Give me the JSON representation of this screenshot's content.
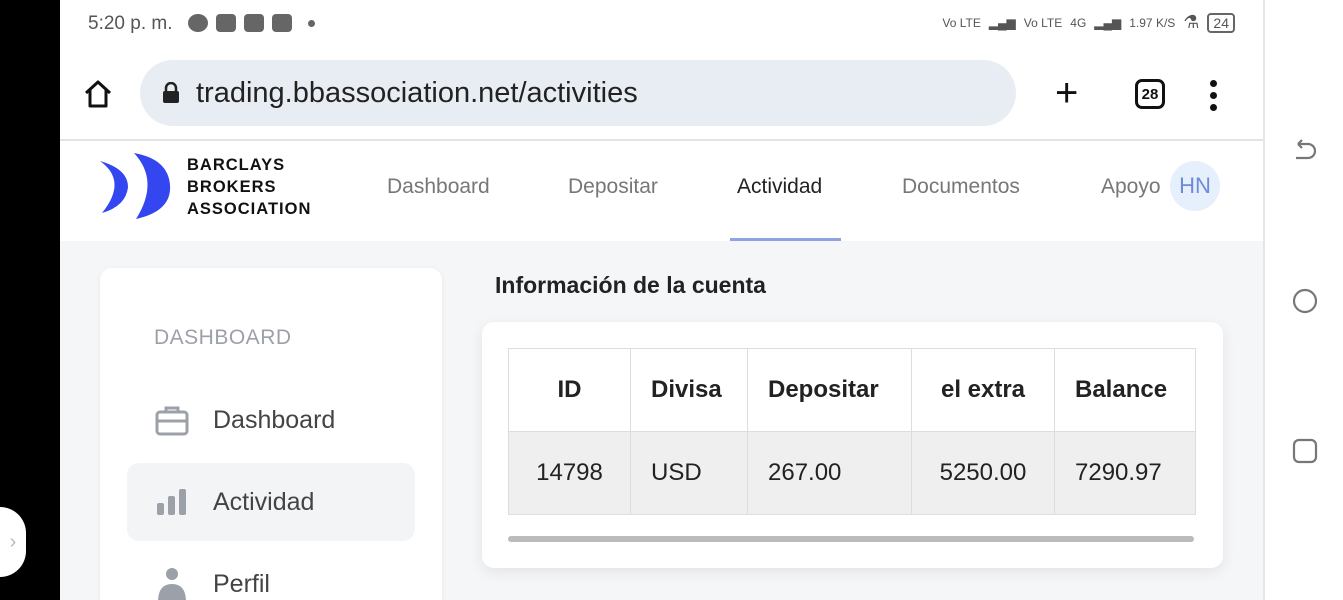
{
  "status_bar": {
    "time": "5:20 p. m.",
    "network1": "Vo LTE",
    "network2": "Vo LTE",
    "net_type": "4G",
    "speed": "1.97 K/S",
    "battery": "24"
  },
  "browser": {
    "url": "trading.bbassociation.net/activities",
    "tab_count": "28"
  },
  "site": {
    "logo_lines": [
      "BARCLAYS",
      "BROKERS",
      "ASSOCIATION"
    ],
    "brand_color": "#3446f0",
    "nav": [
      {
        "label": "Dashboard"
      },
      {
        "label": "Depositar"
      },
      {
        "label": "Actividad",
        "active": true
      },
      {
        "label": "Documentos"
      },
      {
        "label": "Apoyo"
      }
    ],
    "avatar_initials": "HN"
  },
  "sidebar": {
    "heading": "DASHBOARD",
    "items": [
      {
        "label": "Dashboard",
        "icon": "briefcase-icon"
      },
      {
        "label": "Actividad",
        "icon": "bar-chart-icon",
        "active": true
      },
      {
        "label": "Perfil",
        "icon": "user-icon"
      }
    ]
  },
  "main": {
    "title": "Información de la cuenta",
    "table": {
      "headers": [
        "ID",
        "Divisa",
        "Depositar",
        "el extra",
        "Balance"
      ],
      "rows": [
        [
          "14798",
          "USD",
          "267.00",
          "5250.00",
          "7290.97"
        ]
      ]
    }
  }
}
